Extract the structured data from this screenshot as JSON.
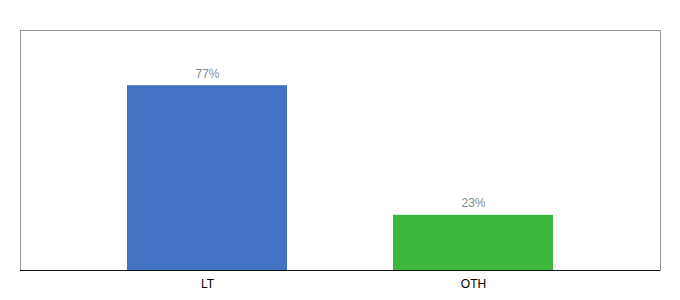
{
  "chart_data": {
    "type": "bar",
    "categories": [
      "LT",
      "OTH"
    ],
    "values": [
      77,
      23
    ],
    "value_labels": [
      "77%",
      "23%"
    ],
    "colors": [
      "#4472C4",
      "#3CB73C"
    ],
    "ylim": [
      0,
      100
    ],
    "yticks": [],
    "data_labels": true,
    "tick_labels": "x"
  }
}
